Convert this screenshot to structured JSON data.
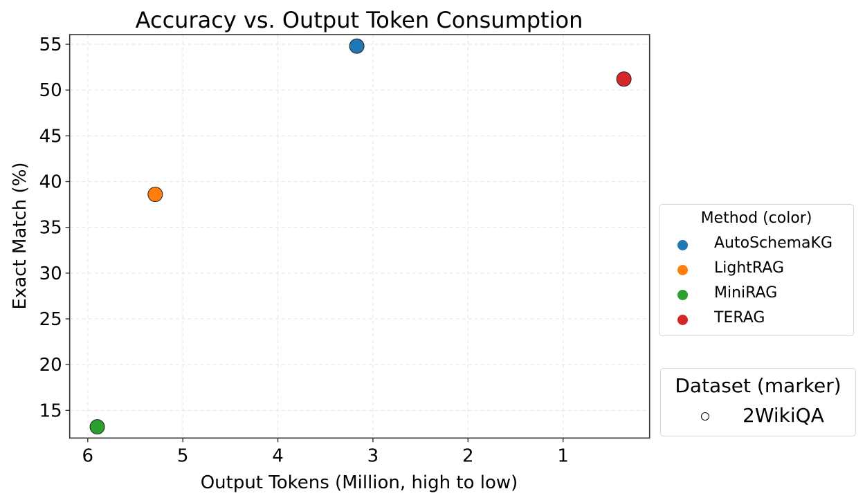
{
  "chart_data": {
    "type": "scatter",
    "title": "Accuracy vs. Output Token Consumption",
    "xlabel": "Output Tokens (Million, high to low)",
    "ylabel": "Exact Match (%)",
    "x_inverted": true,
    "xlim": [
      6.19,
      0.09
    ],
    "ylim": [
      11.98,
      56.06
    ],
    "xticks": [
      6,
      5,
      4,
      3,
      2,
      1
    ],
    "yticks": [
      15,
      20,
      25,
      30,
      35,
      40,
      45,
      50,
      55
    ],
    "grid": true,
    "series": [
      {
        "name": "AutoSchemaKG",
        "dataset": "2WikiQA",
        "color": "#1f77b4",
        "x": 3.17,
        "y": 54.8
      },
      {
        "name": "LightRAG",
        "dataset": "2WikiQA",
        "color": "#ff7f0e",
        "x": 5.29,
        "y": 38.6
      },
      {
        "name": "MiniRAG",
        "dataset": "2WikiQA",
        "color": "#2ca02c",
        "x": 5.9,
        "y": 13.2
      },
      {
        "name": "TERAG",
        "dataset": "2WikiQA",
        "color": "#d62728",
        "x": 0.36,
        "y": 51.2
      }
    ],
    "legends": [
      {
        "title": "Method (color)",
        "entries": [
          {
            "label": "AutoSchemaKG",
            "color": "#1f77b4",
            "marker": "filled-circle"
          },
          {
            "label": "LightRAG",
            "color": "#ff7f0e",
            "marker": "filled-circle"
          },
          {
            "label": "MiniRAG",
            "color": "#2ca02c",
            "marker": "filled-circle"
          },
          {
            "label": "TERAG",
            "color": "#d62728",
            "marker": "filled-circle"
          }
        ]
      },
      {
        "title": "Dataset (marker)",
        "entries": [
          {
            "label": "2WikiQA",
            "color": "#000000",
            "marker": "open-circle"
          }
        ]
      }
    ],
    "legend_position": "right, outside plot"
  },
  "title": "Accuracy vs. Output Token Consumption",
  "xlabel": "Output Tokens (Million, high to low)",
  "ylabel": "Exact Match (%)",
  "legend_method": {
    "title": "Method (color)",
    "items": [
      {
        "label": "AutoSchemaKG",
        "color": "#1f77b4"
      },
      {
        "label": "LightRAG",
        "color": "#ff7f0e"
      },
      {
        "label": "MiniRAG",
        "color": "#2ca02c"
      },
      {
        "label": "TERAG",
        "color": "#d62728"
      }
    ]
  },
  "legend_dataset": {
    "title": "Dataset (marker)",
    "items": [
      {
        "label": "2WikiQA",
        "marker": "open-circle"
      }
    ]
  }
}
